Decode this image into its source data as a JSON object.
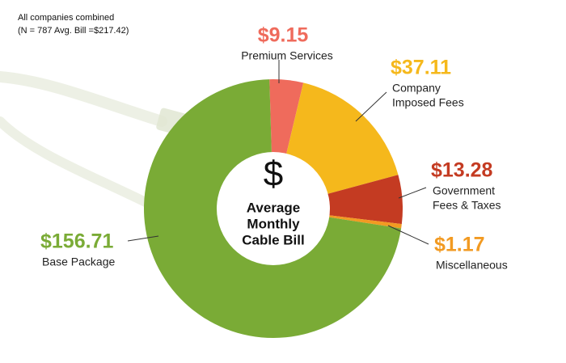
{
  "chart_data": {
    "type": "donut",
    "notes": [
      "All companies combined",
      "(N = 787 Avg. Bill =$217.42)"
    ],
    "center_symbol": "$",
    "center_label": [
      "Average",
      "Monthly",
      "Cable Bill"
    ],
    "categories": [
      [
        "Premium Services"
      ],
      [
        "Company",
        "Imposed Fees"
      ],
      [
        "Government",
        "Fees & Taxes"
      ],
      [
        "Miscellaneous"
      ],
      [
        "Base Package"
      ]
    ],
    "values": [
      9.15,
      37.11,
      13.28,
      1.17,
      156.71
    ],
    "value_labels": [
      "$9.15",
      "$37.11",
      "$13.28",
      "$1.17",
      "$156.71"
    ],
    "colors": [
      "#ef6b5c",
      "#f5b81c",
      "#c43b22",
      "#f29a22",
      "#7aab36"
    ]
  }
}
